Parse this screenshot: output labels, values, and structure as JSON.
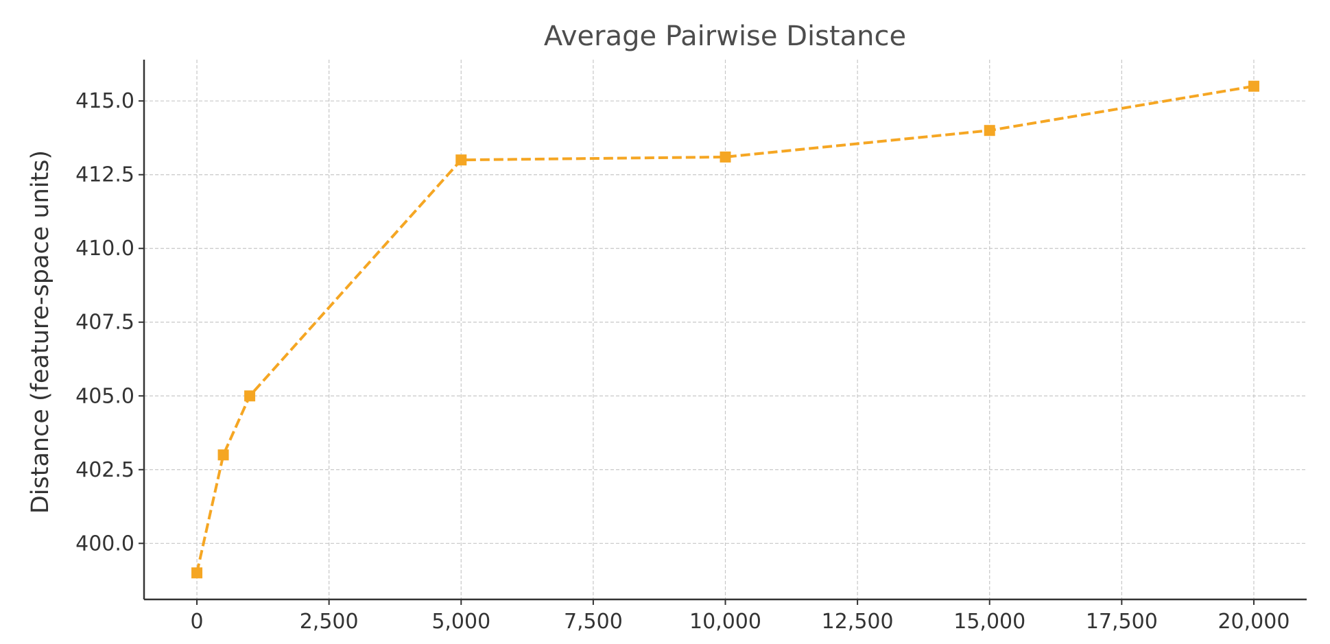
{
  "chart_data": {
    "type": "line",
    "title": "Average Pairwise Distance",
    "xlabel": "",
    "ylabel": "Distance (feature-space units)",
    "x": [
      0,
      500,
      1000,
      5000,
      10000,
      15000,
      20000
    ],
    "series": [
      {
        "values": [
          399.0,
          403.0,
          405.0,
          413.0,
          413.1,
          414.0,
          415.5
        ],
        "color": "#f5a623",
        "line_style": "dashed",
        "marker": "square"
      }
    ],
    "xlim": [
      -1000,
      21000
    ],
    "ylim": [
      398.1,
      416.4
    ],
    "x_ticks": [
      0,
      2500,
      5000,
      7500,
      10000,
      12500,
      15000,
      17500,
      20000
    ],
    "x_tick_labels": [
      "0",
      "2,500",
      "5,000",
      "7,500",
      "10,000",
      "12,500",
      "15,000",
      "17,500",
      "20,000"
    ],
    "y_ticks": [
      400.0,
      402.5,
      405.0,
      407.5,
      410.0,
      412.5,
      415.0
    ],
    "y_tick_labels": [
      "400.0",
      "402.5",
      "405.0",
      "407.5",
      "410.0",
      "412.5",
      "415.0"
    ],
    "grid": true,
    "legend": "none"
  }
}
